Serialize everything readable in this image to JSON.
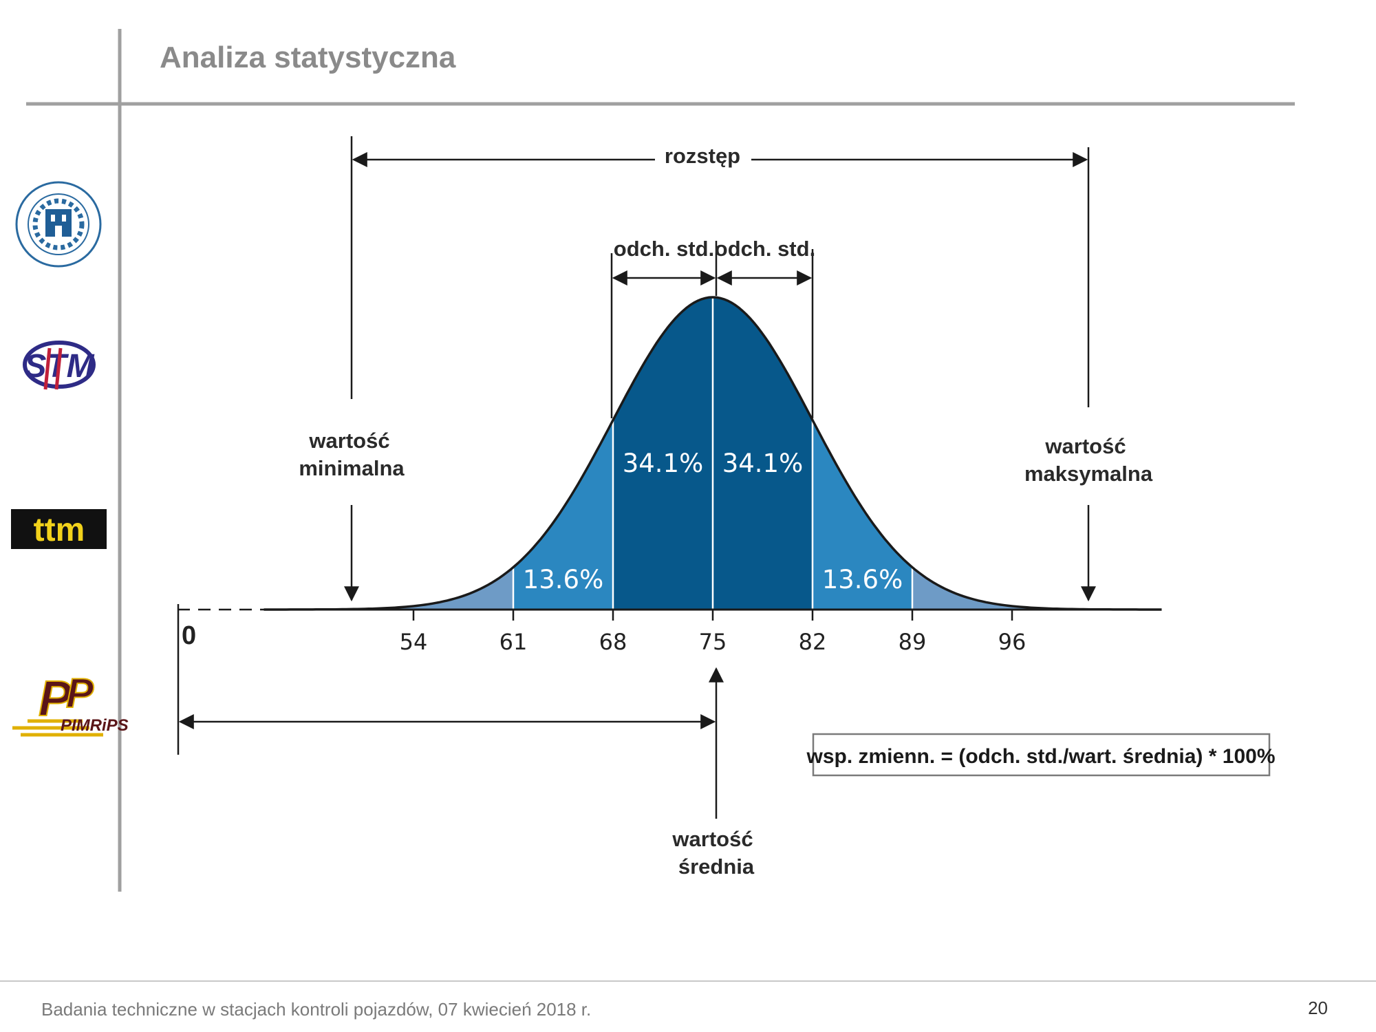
{
  "slide": {
    "title": "Analiza statystyczna",
    "footer_text": "Badania techniczne w stacjach kontroli pojazdów, 07 kwiecień 2018 r.",
    "page_number": "20"
  },
  "logos": {
    "put": {
      "icon": "university-seal-icon",
      "ring_text": "POLITECHNIKA POZNAŃSKA · POZNAN UNIVERSITY OF TECHNOLOGY"
    },
    "stm": {
      "icon": "stm-logo-icon",
      "text": "STM"
    },
    "ttm": {
      "icon": "ttm-logo-icon",
      "text": "ttm"
    },
    "pimrips": {
      "icon": "pimrips-logo-icon",
      "text": "PIMRiPS"
    }
  },
  "diagram": {
    "range_label": "rozstęp",
    "std_label_left": "odch. std.",
    "std_label_right": "odch. std.",
    "min_label_line1": "wartość",
    "min_label_line2": "minimalna",
    "max_label_line1": "wartość",
    "max_label_line2": "maksymalna",
    "mean_label_line1": "wartość",
    "mean_label_line2": "średnia",
    "zero_label": "0",
    "formula": "wsp. zmienn. = (odch. std./wart. średnia) * 100%",
    "colors": {
      "outer_band": "#6e9bc6",
      "middle_band": "#2b87c0",
      "inner_band": "#07588b",
      "curve": "#1a1a1a"
    }
  },
  "chart_data": {
    "type": "area",
    "distribution": "normal",
    "mean": 75,
    "std_dev": 7,
    "x_ticks": [
      54,
      61,
      68,
      75,
      82,
      89,
      96
    ],
    "regions": [
      {
        "from": 61,
        "to": 68,
        "percent_label": "13.6%"
      },
      {
        "from": 68,
        "to": 75,
        "percent_label": "34.1%"
      },
      {
        "from": 75,
        "to": 82,
        "percent_label": "34.1%"
      },
      {
        "from": 82,
        "to": 89,
        "percent_label": "13.6%"
      }
    ]
  }
}
